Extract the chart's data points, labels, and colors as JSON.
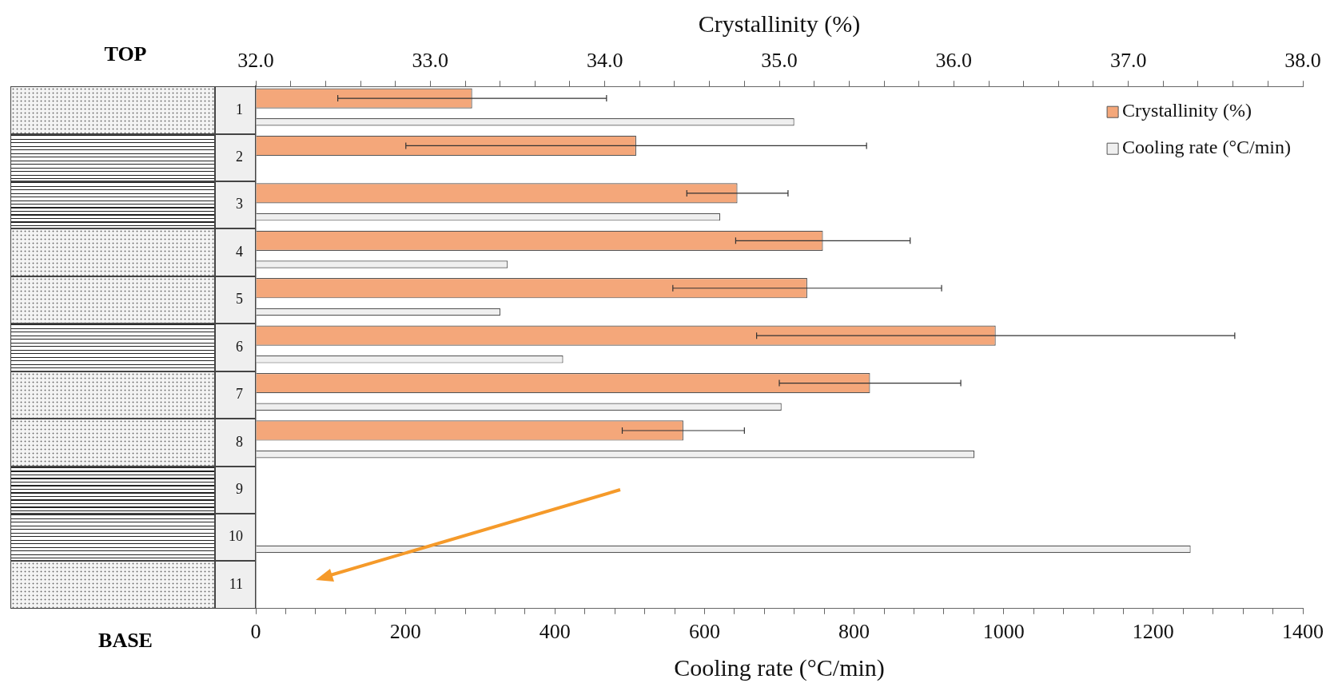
{
  "chart_data": {
    "type": "bar",
    "orientation": "horizontal",
    "x2label": "Crystallinity (%)",
    "xlabel": "Cooling rate (°C/min)",
    "categories": [
      "1",
      "2",
      "3",
      "4",
      "5",
      "6",
      "7",
      "8",
      "9",
      "10",
      "11"
    ],
    "series": [
      {
        "name": "Crystallinity (%)",
        "color": "#f4a77a",
        "axis": "x2",
        "values": [
          33.24,
          34.18,
          34.76,
          35.25,
          35.16,
          36.24,
          35.52,
          34.45,
          null,
          null,
          null
        ],
        "errors": [
          0.77,
          1.32,
          0.29,
          0.5,
          0.77,
          1.37,
          0.52,
          0.35,
          null,
          null,
          null
        ]
      },
      {
        "name": "Cooling rate (°C/min)",
        "color": "#efefef",
        "values": [
          720,
          null,
          621,
          337,
          327,
          411,
          703,
          961,
          null,
          1250,
          null
        ]
      }
    ],
    "xlim": [
      0,
      1400
    ],
    "xticks": [
      0,
      {
        "value": 40,
        "label": null
      },
      {
        "value": 80,
        "label": null
      },
      {
        "value": 120,
        "label": null
      },
      {
        "value": 160,
        "label": null
      },
      200,
      {
        "value": 240,
        "label": null
      },
      {
        "value": 280,
        "label": null
      },
      {
        "value": 320,
        "label": null
      },
      {
        "value": 360,
        "label": null
      },
      400,
      {
        "value": 440,
        "label": null
      },
      {
        "value": 480,
        "label": null
      },
      {
        "value": 520,
        "label": null
      },
      {
        "value": 560,
        "label": null
      },
      600,
      {
        "value": 640,
        "label": null
      },
      {
        "value": 680,
        "label": null
      },
      {
        "value": 720,
        "label": null
      },
      {
        "value": 760,
        "label": null
      },
      800,
      {
        "value": 840,
        "label": null
      },
      {
        "value": 880,
        "label": null
      },
      {
        "value": 920,
        "label": null
      },
      {
        "value": 960,
        "label": null
      },
      1000,
      {
        "value": 1040,
        "label": null
      },
      {
        "value": 1080,
        "label": null
      },
      {
        "value": 1120,
        "label": null
      },
      {
        "value": 1160,
        "label": null
      },
      1200,
      {
        "value": 1240,
        "label": null
      },
      {
        "value": 1280,
        "label": null
      },
      {
        "value": 1320,
        "label": null
      },
      {
        "value": 1360,
        "label": null
      },
      1400
    ],
    "x2lim": [
      32,
      38
    ],
    "x2ticks": [
      {
        "value": 32,
        "label": "32.0"
      },
      {
        "value": 32.2,
        "label": null
      },
      {
        "value": 32.4,
        "label": null
      },
      {
        "value": 32.6,
        "label": null
      },
      {
        "value": 32.8,
        "label": null
      },
      {
        "value": 33,
        "label": "33.0"
      },
      {
        "value": 33.2,
        "label": null
      },
      {
        "value": 33.4,
        "label": null
      },
      {
        "value": 33.6,
        "label": null
      },
      {
        "value": 33.8,
        "label": null
      },
      {
        "value": 34,
        "label": "34.0"
      },
      {
        "value": 34.2,
        "label": null
      },
      {
        "value": 34.4,
        "label": null
      },
      {
        "value": 34.6,
        "label": null
      },
      {
        "value": 34.8,
        "label": null
      },
      {
        "value": 35,
        "label": "35.0"
      },
      {
        "value": 35.2,
        "label": null
      },
      {
        "value": 35.4,
        "label": null
      },
      {
        "value": 35.6,
        "label": null
      },
      {
        "value": 35.8,
        "label": null
      },
      {
        "value": 36,
        "label": "36.0"
      },
      {
        "value": 36.2,
        "label": null
      },
      {
        "value": 36.4,
        "label": null
      },
      {
        "value": 36.6,
        "label": null
      },
      {
        "value": 36.8,
        "label": null
      },
      {
        "value": 37,
        "label": "37.0"
      },
      {
        "value": 37.2,
        "label": null
      },
      {
        "value": 37.4,
        "label": null
      },
      {
        "value": 37.6,
        "label": null
      },
      {
        "value": 37.8,
        "label": null
      },
      {
        "value": 38,
        "label": "38.0"
      }
    ],
    "annotations": [
      "TOP",
      "BASE"
    ],
    "grid": false,
    "legend": "top right"
  }
}
